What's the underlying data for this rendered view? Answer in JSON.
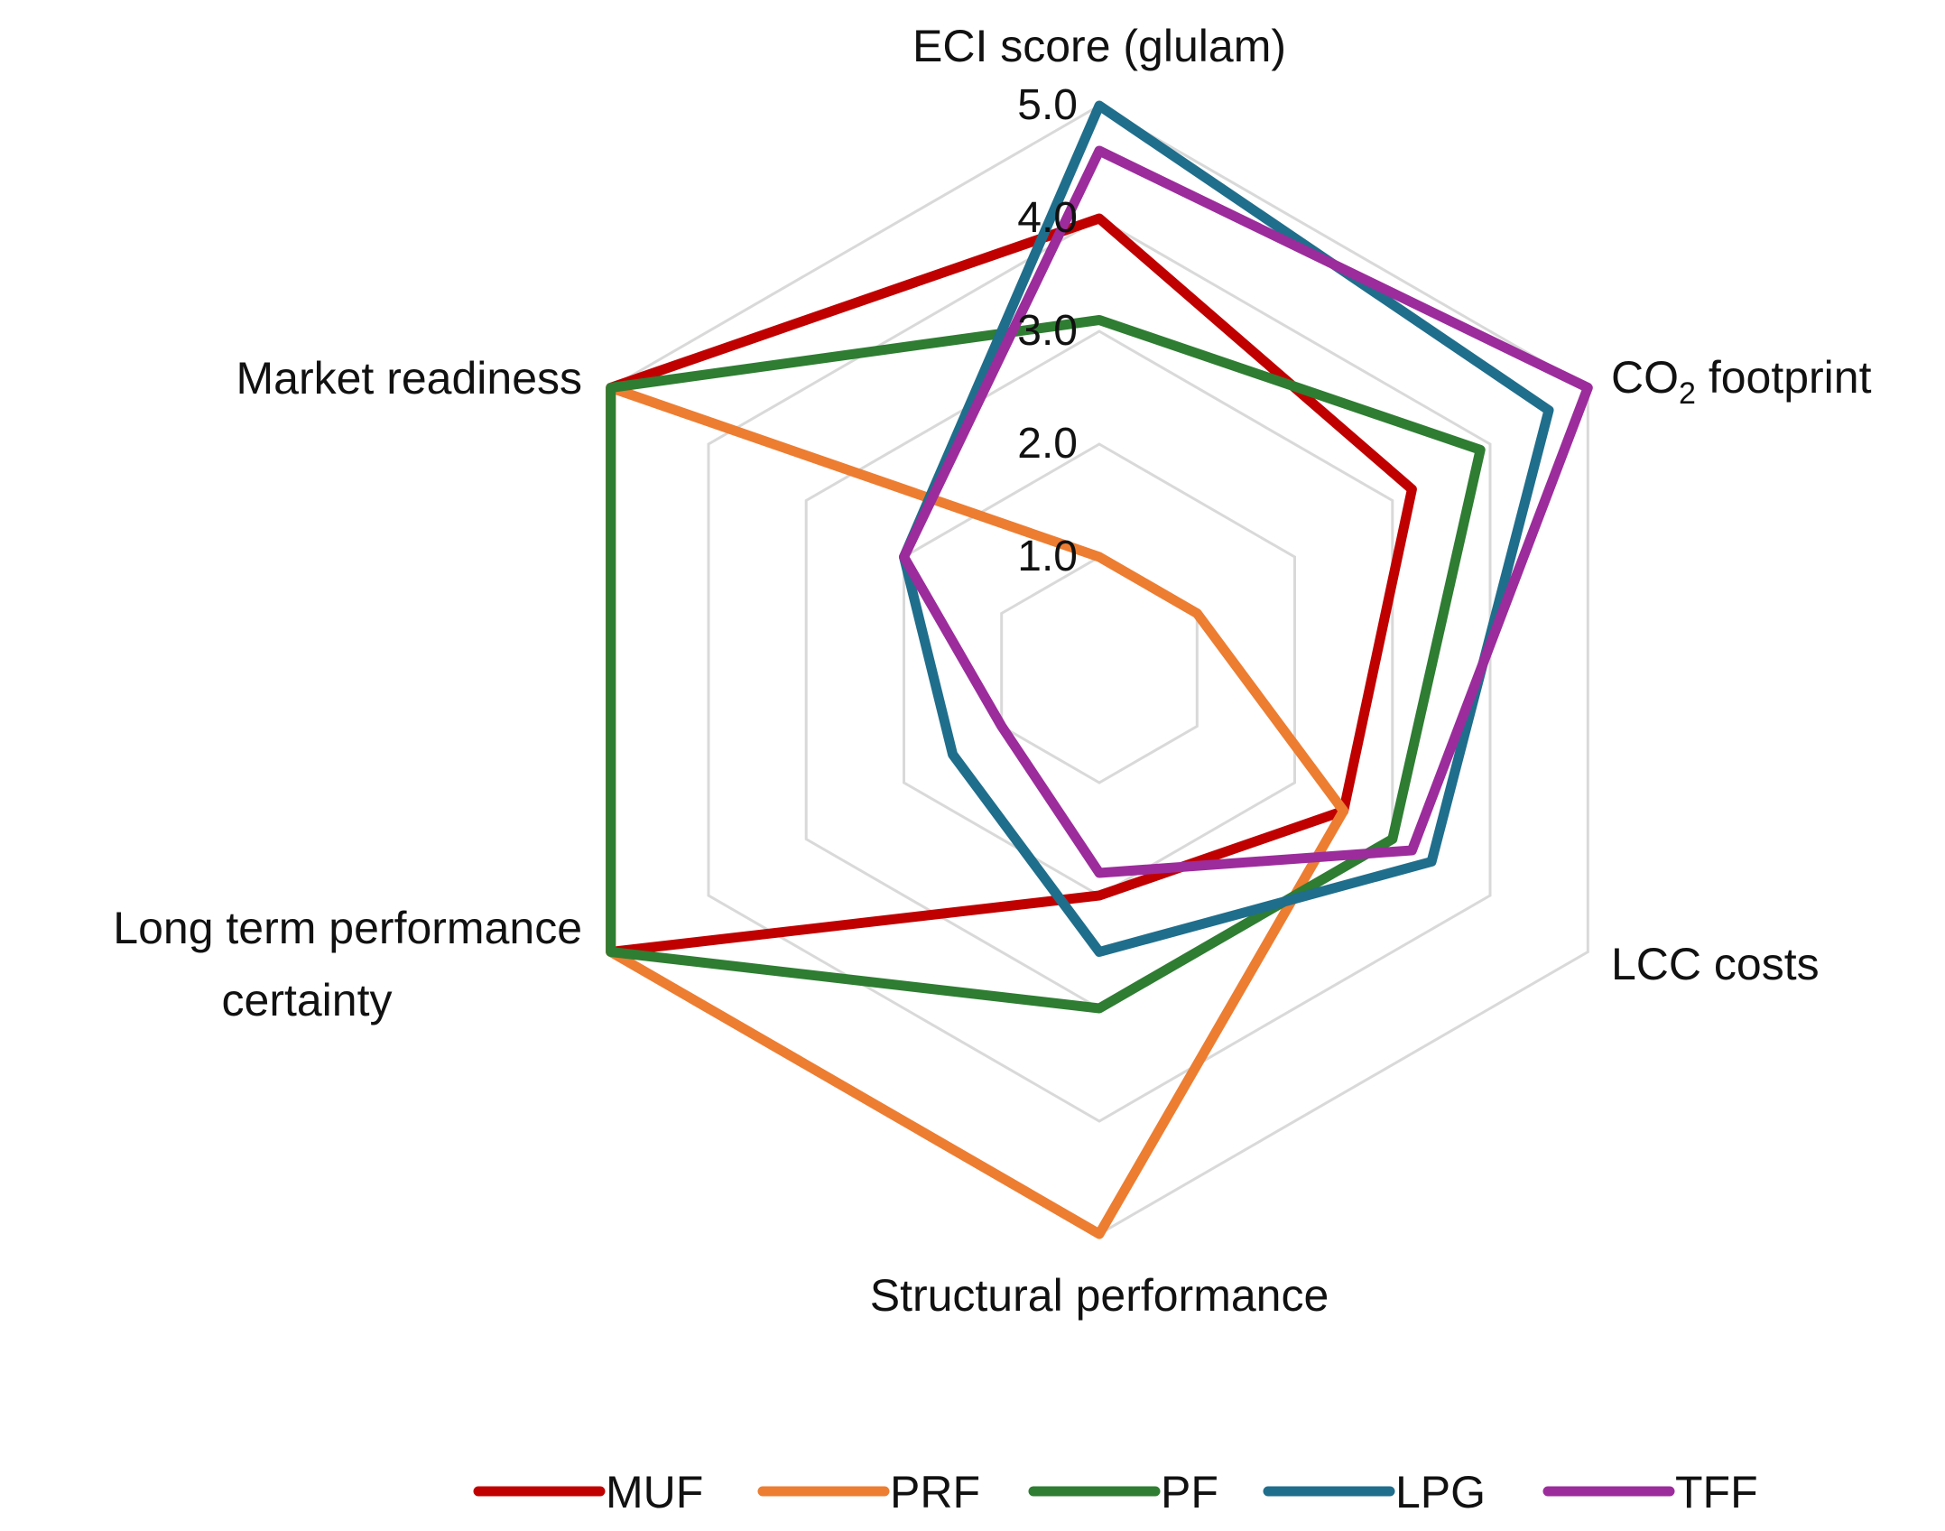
{
  "chart_data": {
    "type": "radar",
    "title": "",
    "axes": [
      {
        "key": "eci",
        "label": "ECI score (glulam)"
      },
      {
        "key": "co2",
        "label": "CO",
        "subscript": "2",
        "suffix": " footprint"
      },
      {
        "key": "lcc",
        "label": "LCC costs"
      },
      {
        "key": "structural",
        "label": "Structural performance"
      },
      {
        "key": "longterm",
        "label": "Long term performance",
        "label_line2": "certainty"
      },
      {
        "key": "market",
        "label": "Market readiness"
      }
    ],
    "rlim": [
      0,
      5
    ],
    "ticks": [
      1.0,
      2.0,
      3.0,
      4.0,
      5.0
    ],
    "tick_labels": [
      "1.0",
      "2.0",
      "3.0",
      "4.0",
      "5.0"
    ],
    "series": [
      {
        "name": "MUF",
        "color": "#c00000",
        "values": [
          4.0,
          3.2,
          2.5,
          2.0,
          5.0,
          5.0
        ]
      },
      {
        "name": "PRF",
        "color": "#ed7d31",
        "values": [
          1.0,
          1.0,
          2.5,
          5.0,
          5.0,
          5.0
        ]
      },
      {
        "name": "PF",
        "color": "#2e7d32",
        "values": [
          3.1,
          3.9,
          3.0,
          3.0,
          5.0,
          5.0
        ]
      },
      {
        "name": "LPG",
        "color": "#1f6e8c",
        "values": [
          5.0,
          4.6,
          3.4,
          2.5,
          1.5,
          2.0
        ]
      },
      {
        "name": "TFF",
        "color": "#9c2c9c",
        "values": [
          4.6,
          5.0,
          3.2,
          1.8,
          1.0,
          2.0
        ]
      }
    ],
    "grid": true,
    "legend_position": "bottom"
  }
}
